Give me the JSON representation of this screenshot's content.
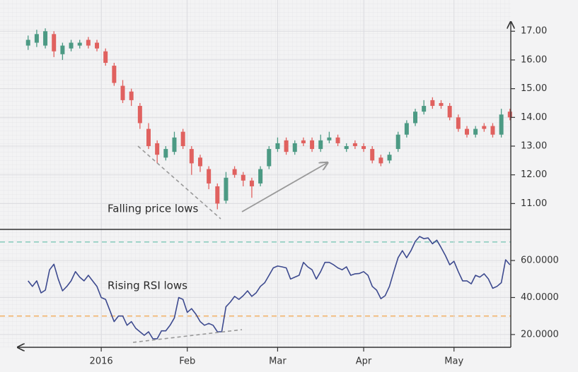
{
  "chart_data": [
    {
      "type": "candlestick",
      "annotation": "Falling price lows",
      "x": [
        -17,
        -15,
        -13,
        -11,
        -9,
        -7,
        -5,
        -3,
        -1,
        1,
        3,
        5,
        7,
        9,
        11,
        13,
        15,
        17,
        19,
        21,
        23,
        25,
        27,
        29,
        31,
        33,
        35,
        37,
        39,
        41,
        43,
        45,
        47,
        49,
        51,
        53,
        55,
        57,
        59,
        61,
        63,
        65,
        67,
        69,
        71,
        73,
        75,
        77,
        79,
        81,
        83,
        85,
        87,
        89,
        91,
        93,
        95
      ],
      "open": [
        16.5,
        16.6,
        16.5,
        16.9,
        16.2,
        16.4,
        16.5,
        16.7,
        16.6,
        16.3,
        15.8,
        15.1,
        14.9,
        14.4,
        13.6,
        13.1,
        12.6,
        12.8,
        13.5,
        12.9,
        12.6,
        12.2,
        11.6,
        11.1,
        12.2,
        12.0,
        11.8,
        11.7,
        12.3,
        12.9,
        13.2,
        12.8,
        13.2,
        13.2,
        12.9,
        13.2,
        13.3,
        12.9,
        13.1,
        13.0,
        12.9,
        12.6,
        12.5,
        12.9,
        13.4,
        13.8,
        14.2,
        14.6,
        14.5,
        14.4,
        14.0,
        13.6,
        13.4,
        13.7,
        13.7,
        13.4,
        14.2
      ],
      "high": [
        16.85,
        17.05,
        17.1,
        17.0,
        16.6,
        16.7,
        16.7,
        16.8,
        16.7,
        16.4,
        15.9,
        15.3,
        15.0,
        14.5,
        13.8,
        13.2,
        13.0,
        13.5,
        13.6,
        13.0,
        12.7,
        12.3,
        11.7,
        12.1,
        12.3,
        12.1,
        11.9,
        12.3,
        13.0,
        13.3,
        13.3,
        13.2,
        13.3,
        13.3,
        13.4,
        13.5,
        13.4,
        13.1,
        13.2,
        13.1,
        13.0,
        12.7,
        12.8,
        13.5,
        13.9,
        14.3,
        14.6,
        14.7,
        14.6,
        14.5,
        14.1,
        13.7,
        13.7,
        13.8,
        13.8,
        14.3,
        14.3
      ],
      "low": [
        16.35,
        16.45,
        16.4,
        16.1,
        16.0,
        16.3,
        16.4,
        16.4,
        16.3,
        15.8,
        15.1,
        14.5,
        14.4,
        13.6,
        12.9,
        12.4,
        12.5,
        12.7,
        12.9,
        12.0,
        12.1,
        11.5,
        10.8,
        11.0,
        11.9,
        11.6,
        11.2,
        11.6,
        12.2,
        12.8,
        12.7,
        12.7,
        13.0,
        12.8,
        12.8,
        13.1,
        13.0,
        12.8,
        12.9,
        12.8,
        12.4,
        12.3,
        12.4,
        12.8,
        13.3,
        13.7,
        14.1,
        14.3,
        14.3,
        13.9,
        13.5,
        13.3,
        13.3,
        13.5,
        13.3,
        13.3,
        13.9
      ],
      "close": [
        16.7,
        16.9,
        17.0,
        16.3,
        16.5,
        16.6,
        16.6,
        16.5,
        16.4,
        15.9,
        15.2,
        14.6,
        14.6,
        13.8,
        13.0,
        12.7,
        12.9,
        13.3,
        13.0,
        12.4,
        12.3,
        11.7,
        11.0,
        11.9,
        12.0,
        11.8,
        11.6,
        12.2,
        12.9,
        13.1,
        12.8,
        13.1,
        13.1,
        12.9,
        13.2,
        13.3,
        13.1,
        13.0,
        13.0,
        12.9,
        12.5,
        12.4,
        12.7,
        13.4,
        13.8,
        14.2,
        14.4,
        14.4,
        14.4,
        14.0,
        13.6,
        13.4,
        13.6,
        13.6,
        13.4,
        14.1,
        14.0
      ],
      "up_color": "#4c9a84",
      "down_color": "#e0615f",
      "xlim": [
        -18.6,
        95.2
      ],
      "ylim": [
        10.1,
        17.35
      ],
      "yticks": [
        {
          "value": 11,
          "label": "11.00"
        },
        {
          "value": 12,
          "label": "12.00"
        },
        {
          "value": 13,
          "label": "13.00"
        },
        {
          "value": 14,
          "label": "14.00"
        },
        {
          "value": 15,
          "label": "15.00"
        },
        {
          "value": 16,
          "label": "16.00"
        },
        {
          "value": 17,
          "label": "17.00"
        }
      ],
      "grid": true
    },
    {
      "type": "line",
      "annotation": "Rising RSI lows",
      "x": [
        -17,
        -16,
        -15,
        -14,
        -13,
        -12,
        -11,
        -10,
        -9,
        -8,
        -7,
        -6,
        -5,
        -4,
        -3,
        -2,
        -1,
        0,
        1,
        2,
        3,
        4,
        5,
        6,
        7,
        8,
        9,
        10,
        11,
        12,
        13,
        14,
        15,
        16,
        17,
        18,
        19,
        20,
        21,
        22,
        23,
        24,
        25,
        26,
        27,
        28,
        29,
        30,
        31,
        32,
        33,
        34,
        35,
        36,
        37,
        38,
        39,
        40,
        41,
        42,
        43,
        44,
        45,
        46,
        47,
        48,
        49,
        50,
        51,
        52,
        53,
        54,
        55,
        56,
        57,
        58,
        59,
        60,
        61,
        62,
        63,
        64,
        65,
        66,
        67,
        68,
        69,
        70,
        71,
        72,
        73,
        74,
        75,
        76,
        77,
        78,
        79,
        80,
        81,
        82,
        83,
        84,
        85,
        86,
        87,
        88,
        89,
        90,
        91,
        92,
        93,
        94,
        95
      ],
      "values": [
        49,
        46,
        49,
        42.5,
        44,
        55,
        58,
        50,
        43.6,
        46,
        49,
        54,
        51,
        49,
        52,
        49,
        46,
        40,
        39,
        33,
        27,
        30,
        30,
        25,
        27,
        23.4,
        21.5,
        19.6,
        21.5,
        17.7,
        17.7,
        22,
        22,
        25,
        29,
        40,
        39,
        32,
        34,
        31,
        27,
        25,
        26,
        25,
        21.5,
        21.5,
        35,
        37.5,
        40.6,
        39,
        41,
        43.6,
        40.6,
        42.5,
        46,
        48,
        52,
        56,
        57,
        56.6,
        56,
        50,
        51,
        52,
        59,
        56.6,
        55,
        50,
        54,
        59,
        59,
        57.7,
        56,
        55,
        56.6,
        52,
        52.8,
        53,
        54,
        52,
        46,
        44,
        39.4,
        41,
        46,
        54,
        61.5,
        65.3,
        61.5,
        65.3,
        70.3,
        73,
        71.8,
        72.2,
        69,
        71,
        67,
        62.7,
        57.7,
        59.6,
        54,
        49,
        49,
        47.4,
        52,
        51,
        52.8,
        50,
        45,
        46,
        48,
        60.4,
        57.7
      ],
      "color": "#3d4a8f",
      "hlines": [
        {
          "value": 70,
          "color": "#8fcfc0"
        },
        {
          "value": 30,
          "color": "#f2b36b"
        }
      ],
      "xlim": [
        -18.6,
        95.2
      ],
      "xticks": [
        {
          "value": 0,
          "label": "2016"
        },
        {
          "value": 20,
          "label": "Feb"
        },
        {
          "value": 41,
          "label": "Mar"
        },
        {
          "value": 61,
          "label": "Apr"
        },
        {
          "value": 82,
          "label": "May"
        }
      ],
      "ylim": [
        13.1,
        76.8
      ],
      "yticks": [
        {
          "value": 20,
          "label": "20.0000"
        },
        {
          "value": 40,
          "label": "40.0000"
        },
        {
          "value": 60,
          "label": "60.0000"
        }
      ],
      "grid": true
    }
  ]
}
